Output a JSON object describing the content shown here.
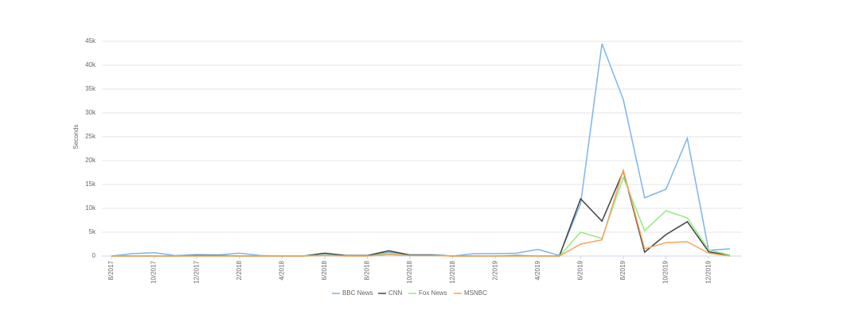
{
  "chart_data": {
    "type": "line",
    "y_label": "Seconds",
    "categories": [
      "8/2017",
      null,
      "10/2017",
      null,
      "12/2017",
      null,
      "2/2018",
      null,
      "4/2018",
      null,
      "6/2018",
      null,
      "8/2018",
      null,
      "10/2018",
      null,
      "12/2018",
      null,
      "2/2019",
      null,
      "4/2019",
      null,
      "6/2019",
      null,
      "8/2019",
      null,
      "10/2019",
      null,
      "12/2019",
      null
    ],
    "series": [
      {
        "name": "BBC News",
        "color": "#7cb5ec",
        "values": [
          0,
          500,
          700,
          100,
          300,
          200,
          600,
          100,
          0,
          0,
          300,
          100,
          100,
          800,
          300,
          300,
          0,
          500,
          500,
          600,
          1400,
          100,
          11000,
          44500,
          32800,
          12200,
          14000,
          24700,
          1200,
          1500
        ]
      },
      {
        "name": "CNN",
        "color": "#434348",
        "values": [
          0,
          0,
          0,
          0,
          100,
          100,
          0,
          0,
          0,
          0,
          600,
          100,
          100,
          1100,
          200,
          200,
          0,
          0,
          0,
          100,
          0,
          0,
          12000,
          7300,
          17800,
          800,
          4500,
          7200,
          900,
          100
        ]
      },
      {
        "name": "Fox News",
        "color": "#90ed7d",
        "values": [
          0,
          0,
          0,
          0,
          0,
          0,
          0,
          0,
          0,
          0,
          200,
          0,
          0,
          500,
          100,
          100,
          0,
          0,
          0,
          0,
          0,
          0,
          5000,
          3700,
          16500,
          5300,
          9500,
          8000,
          1300,
          200
        ]
      },
      {
        "name": "MSNBC",
        "color": "#f7a35c",
        "values": [
          0,
          0,
          0,
          0,
          0,
          0,
          0,
          0,
          0,
          0,
          100,
          0,
          0,
          300,
          100,
          100,
          0,
          0,
          0,
          0,
          0,
          0,
          2500,
          3400,
          18000,
          1500,
          2800,
          3000,
          600,
          0
        ]
      }
    ],
    "ylim": [
      0,
      45000
    ],
    "yticks": [
      0,
      {
        "value": 5000,
        "label": "5k"
      },
      {
        "value": 10000,
        "label": "10k"
      },
      {
        "value": 15000,
        "label": "15k"
      },
      {
        "value": 20000,
        "label": "20k"
      },
      {
        "value": 25000,
        "label": "25k"
      },
      {
        "value": 30000,
        "label": "30k"
      },
      {
        "value": 35000,
        "label": "35k"
      },
      {
        "value": 40000,
        "label": "40k"
      },
      {
        "value": 45000,
        "label": "45k"
      }
    ],
    "grid": true,
    "legend": "bottom"
  }
}
